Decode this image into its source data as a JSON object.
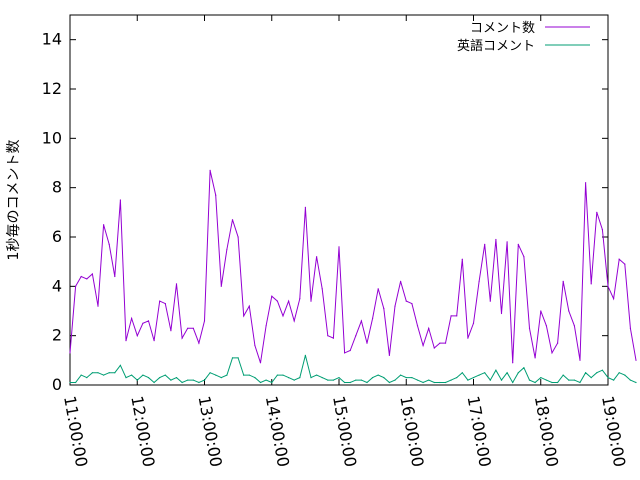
{
  "chart_data": {
    "type": "line",
    "title": "",
    "xlabel": "",
    "ylabel": "1秒毎のコメント数",
    "xlim": [
      "11:00:00",
      "19:00:00"
    ],
    "ylim": [
      0,
      15
    ],
    "x_ticks": [
      "11:00:00",
      "12:00:00",
      "13:00:00",
      "14:00:00",
      "15:00:00",
      "16:00:00",
      "17:00:00",
      "18:00:00",
      "19:00:00"
    ],
    "y_ticks": [
      "0",
      "2",
      "4",
      "6",
      "8",
      "10",
      "12",
      "14"
    ],
    "grid": false,
    "legend_position": "top-right",
    "x_interval_minutes": 5,
    "x_start": "11:00:00",
    "series": [
      {
        "name": "コメント数",
        "color": "#9400d3",
        "values": [
          1.3,
          4.0,
          4.4,
          4.3,
          4.5,
          3.2,
          6.5,
          5.7,
          4.4,
          7.5,
          1.8,
          2.7,
          2.0,
          2.5,
          2.6,
          1.8,
          3.4,
          3.3,
          2.2,
          4.1,
          1.9,
          2.3,
          2.3,
          1.7,
          2.6,
          8.7,
          7.7,
          4.0,
          5.5,
          6.7,
          6.0,
          2.8,
          3.2,
          1.6,
          0.9,
          2.4,
          3.6,
          3.4,
          2.8,
          3.4,
          2.6,
          3.5,
          7.2,
          3.4,
          5.2,
          3.9,
          2.0,
          1.9,
          5.6,
          1.3,
          1.4,
          2.0,
          2.6,
          1.7,
          2.7,
          3.9,
          3.1,
          1.2,
          3.2,
          4.2,
          3.4,
          3.3,
          2.4,
          1.6,
          2.3,
          1.5,
          1.7,
          1.7,
          2.8,
          2.8,
          5.1,
          1.9,
          2.5,
          4.2,
          5.7,
          3.4,
          5.9,
          2.9,
          5.8,
          0.9,
          5.7,
          5.2,
          2.3,
          1.1,
          3.0,
          2.4,
          1.3,
          1.7,
          4.2,
          3.0,
          2.4,
          1.0,
          8.2,
          4.1,
          7.0,
          6.3,
          4.0,
          3.5,
          5.1,
          4.9,
          2.3,
          1.0
        ]
      },
      {
        "name": "英語コメント",
        "color": "#009e73",
        "values": [
          0.1,
          0.1,
          0.4,
          0.3,
          0.5,
          0.5,
          0.4,
          0.5,
          0.5,
          0.8,
          0.3,
          0.4,
          0.2,
          0.4,
          0.3,
          0.1,
          0.3,
          0.4,
          0.2,
          0.3,
          0.1,
          0.2,
          0.2,
          0.1,
          0.2,
          0.5,
          0.4,
          0.3,
          0.4,
          1.1,
          1.1,
          0.4,
          0.4,
          0.3,
          0.1,
          0.2,
          0.1,
          0.4,
          0.4,
          0.3,
          0.2,
          0.3,
          1.2,
          0.3,
          0.4,
          0.3,
          0.2,
          0.2,
          0.3,
          0.1,
          0.1,
          0.2,
          0.2,
          0.1,
          0.3,
          0.4,
          0.3,
          0.1,
          0.2,
          0.4,
          0.3,
          0.3,
          0.2,
          0.1,
          0.2,
          0.1,
          0.1,
          0.1,
          0.2,
          0.3,
          0.5,
          0.2,
          0.3,
          0.4,
          0.5,
          0.2,
          0.6,
          0.2,
          0.5,
          0.1,
          0.5,
          0.7,
          0.2,
          0.1,
          0.3,
          0.2,
          0.1,
          0.1,
          0.4,
          0.2,
          0.2,
          0.1,
          0.5,
          0.3,
          0.5,
          0.6,
          0.3,
          0.2,
          0.5,
          0.4,
          0.2,
          0.1
        ]
      }
    ]
  }
}
